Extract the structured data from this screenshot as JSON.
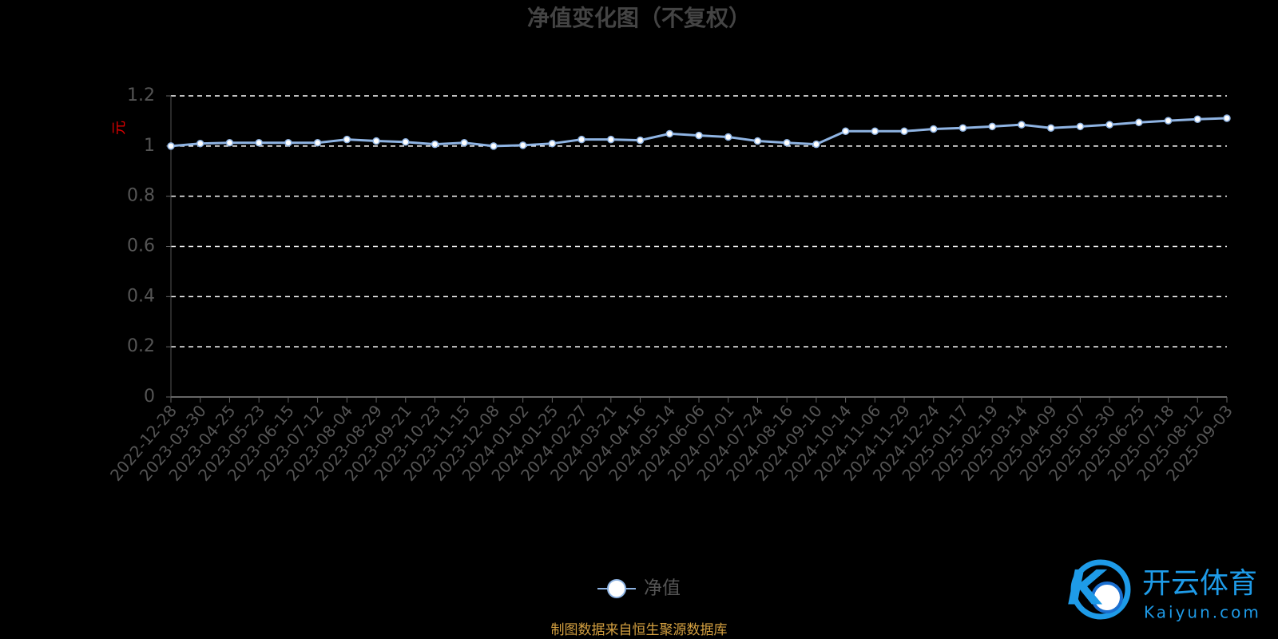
{
  "chart_data": {
    "type": "line",
    "title": "净值变化图（不复权）",
    "y_label": "元",
    "source": "制图数据来自恒生聚源数据库",
    "watermark": [
      "开云体育",
      "Kaiyun.com"
    ],
    "categories": [
      "2022-12-28",
      "2023-03-30",
      "2023-04-25",
      "2023-05-23",
      "2023-06-15",
      "2023-07-12",
      "2023-08-04",
      "2023-08-29",
      "2023-09-21",
      "2023-10-23",
      "2023-11-15",
      "2023-12-08",
      "2024-01-02",
      "2024-01-25",
      "2024-02-27",
      "2024-03-21",
      "2024-04-16",
      "2024-05-14",
      "2024-06-06",
      "2024-07-01",
      "2024-07-24",
      "2024-08-16",
      "2024-09-10",
      "2024-10-14",
      "2024-11-06",
      "2024-11-29",
      "2024-12-24",
      "2025-01-17",
      "2025-02-19",
      "2025-03-14",
      "2025-04-09",
      "2025-05-07",
      "2025-05-30",
      "2025-06-25",
      "2025-07-18",
      "2025-08-12",
      "2025-09-03"
    ],
    "series": [
      {
        "name": "净值",
        "color": "#8fb4e3",
        "values": [
          1.0,
          1.01,
          1.013,
          1.013,
          1.013,
          1.013,
          1.026,
          1.02,
          1.016,
          1.007,
          1.013,
          1.0,
          1.003,
          1.01,
          1.026,
          1.026,
          1.023,
          1.049,
          1.042,
          1.036,
          1.02,
          1.013,
          1.007,
          1.059,
          1.059,
          1.059,
          1.068,
          1.072,
          1.078,
          1.085,
          1.072,
          1.078,
          1.085,
          1.094,
          1.101,
          1.107,
          1.111
        ]
      }
    ],
    "ylim": [
      0,
      1.2
    ],
    "yticks": [
      0,
      0.2,
      0.4,
      0.6,
      0.8,
      1,
      1.2
    ],
    "grid": true
  }
}
